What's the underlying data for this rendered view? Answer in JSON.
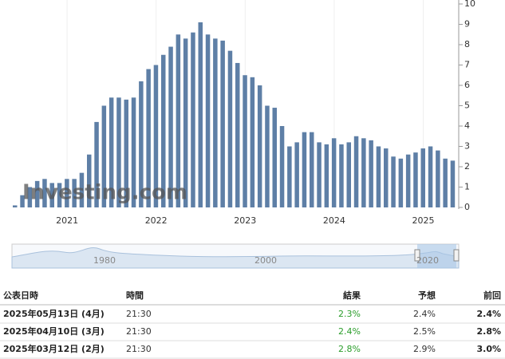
{
  "chart_data": {
    "type": "bar",
    "categories": [
      null,
      null,
      null,
      null,
      null,
      null,
      null,
      "2021",
      null,
      null,
      null,
      null,
      null,
      null,
      null,
      null,
      null,
      null,
      null,
      "2022",
      null,
      null,
      null,
      null,
      null,
      null,
      null,
      null,
      null,
      null,
      null,
      "2023",
      null,
      null,
      null,
      null,
      null,
      null,
      null,
      null,
      null,
      null,
      null,
      "2024",
      null,
      null,
      null,
      null,
      null,
      null,
      null,
      null,
      null,
      null,
      null,
      "2025",
      null,
      null,
      null,
      null
    ],
    "values": [
      0.1,
      0.6,
      1.0,
      1.3,
      1.4,
      1.2,
      1.2,
      1.4,
      1.4,
      1.7,
      2.6,
      4.2,
      5.0,
      5.4,
      5.4,
      5.3,
      5.4,
      6.2,
      6.8,
      7.0,
      7.5,
      7.9,
      8.5,
      8.3,
      8.6,
      9.1,
      8.5,
      8.3,
      8.2,
      7.7,
      7.1,
      6.5,
      6.4,
      6.0,
      5.0,
      4.9,
      4.0,
      3.0,
      3.2,
      3.7,
      3.7,
      3.2,
      3.1,
      3.4,
      3.1,
      3.2,
      3.5,
      3.4,
      3.3,
      3.0,
      2.9,
      2.5,
      2.4,
      2.6,
      2.7,
      2.9,
      3.0,
      2.8,
      2.4,
      2.3
    ],
    "color": "#5e7fa6",
    "ylim": [
      0,
      10
    ],
    "yticks": [
      0,
      1,
      2,
      3,
      4,
      5,
      6,
      7,
      8,
      9,
      10
    ],
    "watermark": "Investing.com"
  },
  "navigator": {
    "labels": [
      "1980",
      "2000",
      "2020"
    ]
  },
  "table": {
    "header": [
      "公表日時",
      "時間",
      "結果",
      "予想",
      "前回"
    ],
    "rows": [
      [
        "2025年05月13日 (4月)",
        "21:30",
        "2.3%",
        "2.4%",
        "2.4%"
      ],
      [
        "2025年04月10日 (3月)",
        "21:30",
        "2.4%",
        "2.5%",
        "2.8%"
      ],
      [
        "2025年03月12日 (2月)",
        "21:30",
        "2.8%",
        "2.9%",
        "3.0%"
      ]
    ]
  }
}
